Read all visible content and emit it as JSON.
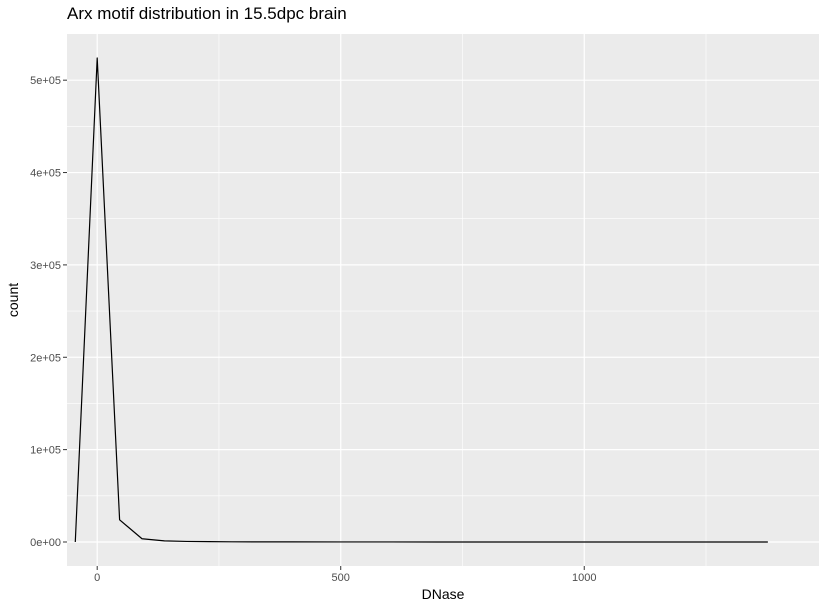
{
  "chart_data": {
    "type": "line",
    "title": "Arx motif distribution in 15.5dpc brain",
    "xlabel": "DNase",
    "ylabel": "count",
    "xlim": [
      -62,
      1482
    ],
    "ylim": [
      -26000,
      550000
    ],
    "x_ticks": [
      {
        "value": 0,
        "label": "0"
      },
      {
        "value": 500,
        "label": "500"
      },
      {
        "value": 1000,
        "label": "1000"
      }
    ],
    "x_minor_ticks": [
      250,
      750,
      1250
    ],
    "y_ticks": [
      {
        "value": 0,
        "label": "0e+00"
      },
      {
        "value": 100000,
        "label": "1e+05"
      },
      {
        "value": 200000,
        "label": "2e+05"
      },
      {
        "value": 300000,
        "label": "3e+05"
      },
      {
        "value": 400000,
        "label": "4e+05"
      },
      {
        "value": 500000,
        "label": "5e+05"
      }
    ],
    "y_minor_ticks": [
      50000,
      150000,
      250000,
      350000,
      450000
    ],
    "grid": true,
    "series": [
      {
        "color": "#000000",
        "points": [
          [
            -45,
            0
          ],
          [
            0,
            524000
          ],
          [
            46,
            24000
          ],
          [
            92,
            3500
          ],
          [
            138,
            1200
          ],
          [
            184,
            600
          ],
          [
            230,
            350
          ],
          [
            276,
            200
          ],
          [
            322,
            130
          ],
          [
            400,
            80
          ],
          [
            500,
            50
          ],
          [
            600,
            30
          ],
          [
            700,
            20
          ],
          [
            800,
            15
          ],
          [
            900,
            10
          ],
          [
            1000,
            8
          ],
          [
            1100,
            6
          ],
          [
            1200,
            5
          ],
          [
            1300,
            4
          ],
          [
            1377,
            3
          ]
        ]
      }
    ]
  }
}
